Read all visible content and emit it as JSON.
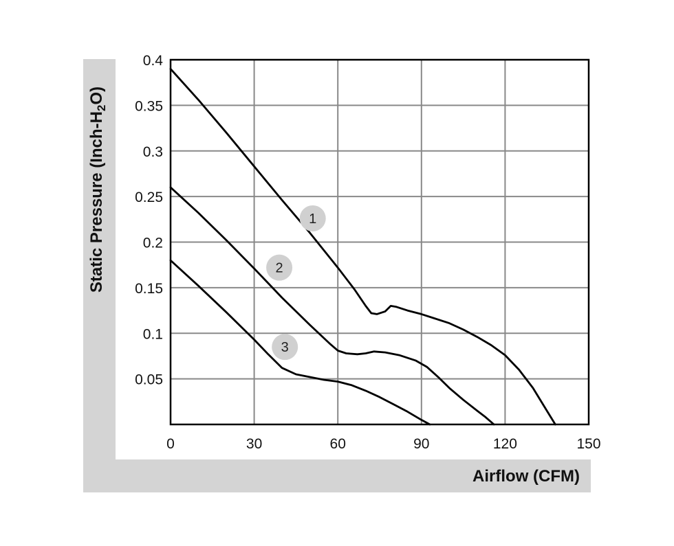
{
  "chart_data": {
    "type": "line",
    "xlabel": "Airflow (CFM)",
    "ylabel_parts": [
      "Static Pressure (Inch-H",
      "2",
      "O)"
    ],
    "xlim": [
      0,
      150
    ],
    "ylim": [
      0,
      0.4
    ],
    "xticks": [
      0,
      30,
      60,
      90,
      120,
      150
    ],
    "xtick_labels": [
      "0",
      "30",
      "60",
      "90",
      "120",
      "150"
    ],
    "yticks": [
      0.05,
      0.1,
      0.15,
      0.2,
      0.25,
      0.3,
      0.35,
      0.4
    ],
    "ytick_labels": [
      "0.05",
      "0.1",
      "0.15",
      "0.2",
      "0.25",
      "0.3",
      "0.35",
      "0.4"
    ],
    "grid": true,
    "series": [
      {
        "label": "1",
        "label_pos": [
          51,
          0.226
        ],
        "points": [
          [
            0,
            0.39
          ],
          [
            10,
            0.356
          ],
          [
            20,
            0.32
          ],
          [
            30,
            0.283
          ],
          [
            40,
            0.246
          ],
          [
            50,
            0.21
          ],
          [
            60,
            0.172
          ],
          [
            66,
            0.148
          ],
          [
            70,
            0.13
          ],
          [
            72,
            0.122
          ],
          [
            74,
            0.121
          ],
          [
            77,
            0.124
          ],
          [
            79,
            0.13
          ],
          [
            81,
            0.129
          ],
          [
            85,
            0.125
          ],
          [
            90,
            0.121
          ],
          [
            95,
            0.116
          ],
          [
            100,
            0.111
          ],
          [
            105,
            0.104
          ],
          [
            110,
            0.096
          ],
          [
            115,
            0.087
          ],
          [
            120,
            0.076
          ],
          [
            125,
            0.06
          ],
          [
            130,
            0.04
          ],
          [
            135,
            0.015
          ],
          [
            138,
            0.0
          ]
        ]
      },
      {
        "label": "2",
        "label_pos": [
          39,
          0.172
        ],
        "points": [
          [
            0,
            0.26
          ],
          [
            10,
            0.232
          ],
          [
            20,
            0.202
          ],
          [
            30,
            0.171
          ],
          [
            40,
            0.139
          ],
          [
            50,
            0.109
          ],
          [
            57,
            0.089
          ],
          [
            60,
            0.081
          ],
          [
            63,
            0.078
          ],
          [
            67,
            0.077
          ],
          [
            70,
            0.078
          ],
          [
            73,
            0.08
          ],
          [
            77,
            0.079
          ],
          [
            82,
            0.076
          ],
          [
            88,
            0.07
          ],
          [
            92,
            0.063
          ],
          [
            96,
            0.052
          ],
          [
            100,
            0.04
          ],
          [
            105,
            0.027
          ],
          [
            110,
            0.015
          ],
          [
            113,
            0.008
          ],
          [
            116,
            0.0
          ]
        ]
      },
      {
        "label": "3",
        "label_pos": [
          41,
          0.085
        ],
        "points": [
          [
            0,
            0.18
          ],
          [
            10,
            0.152
          ],
          [
            20,
            0.123
          ],
          [
            30,
            0.093
          ],
          [
            35,
            0.077
          ],
          [
            40,
            0.062
          ],
          [
            45,
            0.055
          ],
          [
            50,
            0.052
          ],
          [
            55,
            0.049
          ],
          [
            60,
            0.047
          ],
          [
            65,
            0.043
          ],
          [
            70,
            0.037
          ],
          [
            75,
            0.03
          ],
          [
            80,
            0.022
          ],
          [
            85,
            0.014
          ],
          [
            90,
            0.005
          ],
          [
            93,
            0.0
          ]
        ]
      }
    ]
  }
}
